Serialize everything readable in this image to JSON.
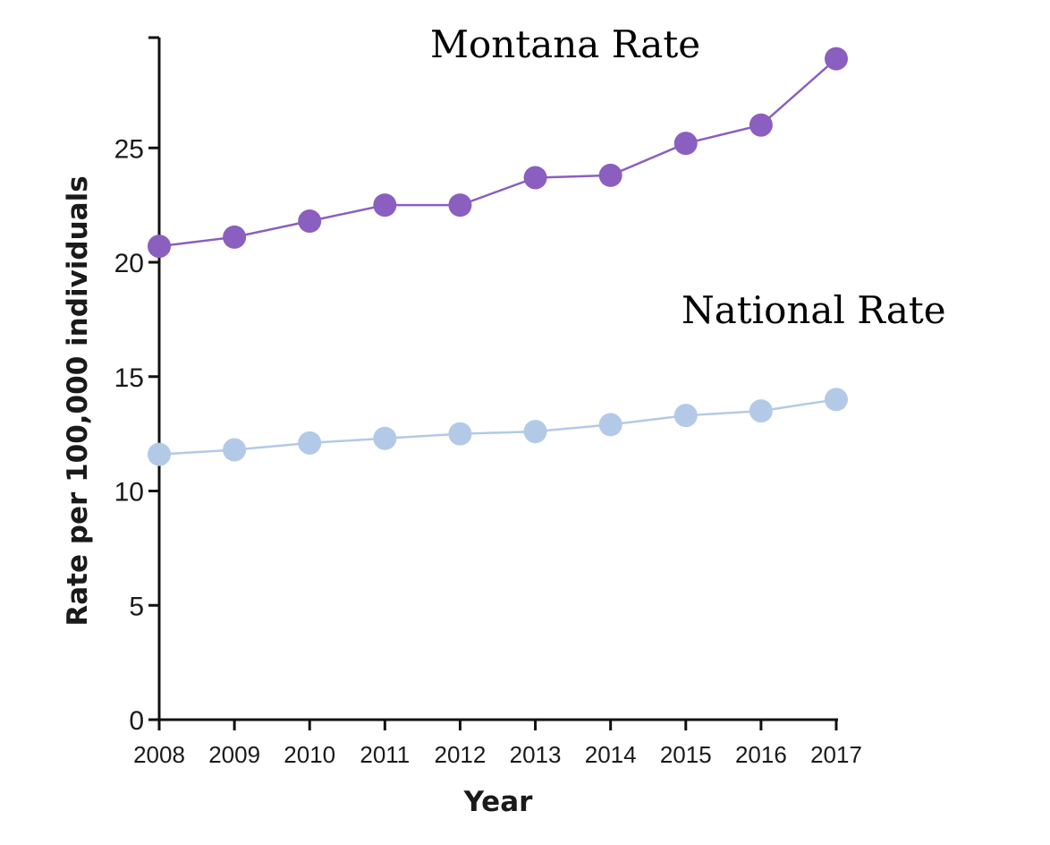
{
  "chart_data": {
    "type": "line",
    "title": "",
    "xlabel": "Year",
    "ylabel": "Rate per 100,000 individuals",
    "x": [
      "2008",
      "2009",
      "2010",
      "2011",
      "2012",
      "2013",
      "2014",
      "2015",
      "2016",
      "2017"
    ],
    "ylim": [
      0,
      29
    ],
    "yticks": [
      "0",
      "5",
      "10",
      "15",
      "20",
      "25"
    ],
    "grid": false,
    "legend": "none",
    "series": [
      {
        "name": "Montana Rate",
        "color": "#8b5fbf",
        "values": [
          20.7,
          21.1,
          21.8,
          22.5,
          22.5,
          23.7,
          23.8,
          25.2,
          26.0,
          28.9
        ]
      },
      {
        "name": "National Rate",
        "color": "#b3c9e8",
        "values": [
          11.6,
          11.8,
          12.1,
          12.3,
          12.5,
          12.6,
          12.9,
          13.3,
          13.5,
          14.0
        ]
      }
    ]
  }
}
